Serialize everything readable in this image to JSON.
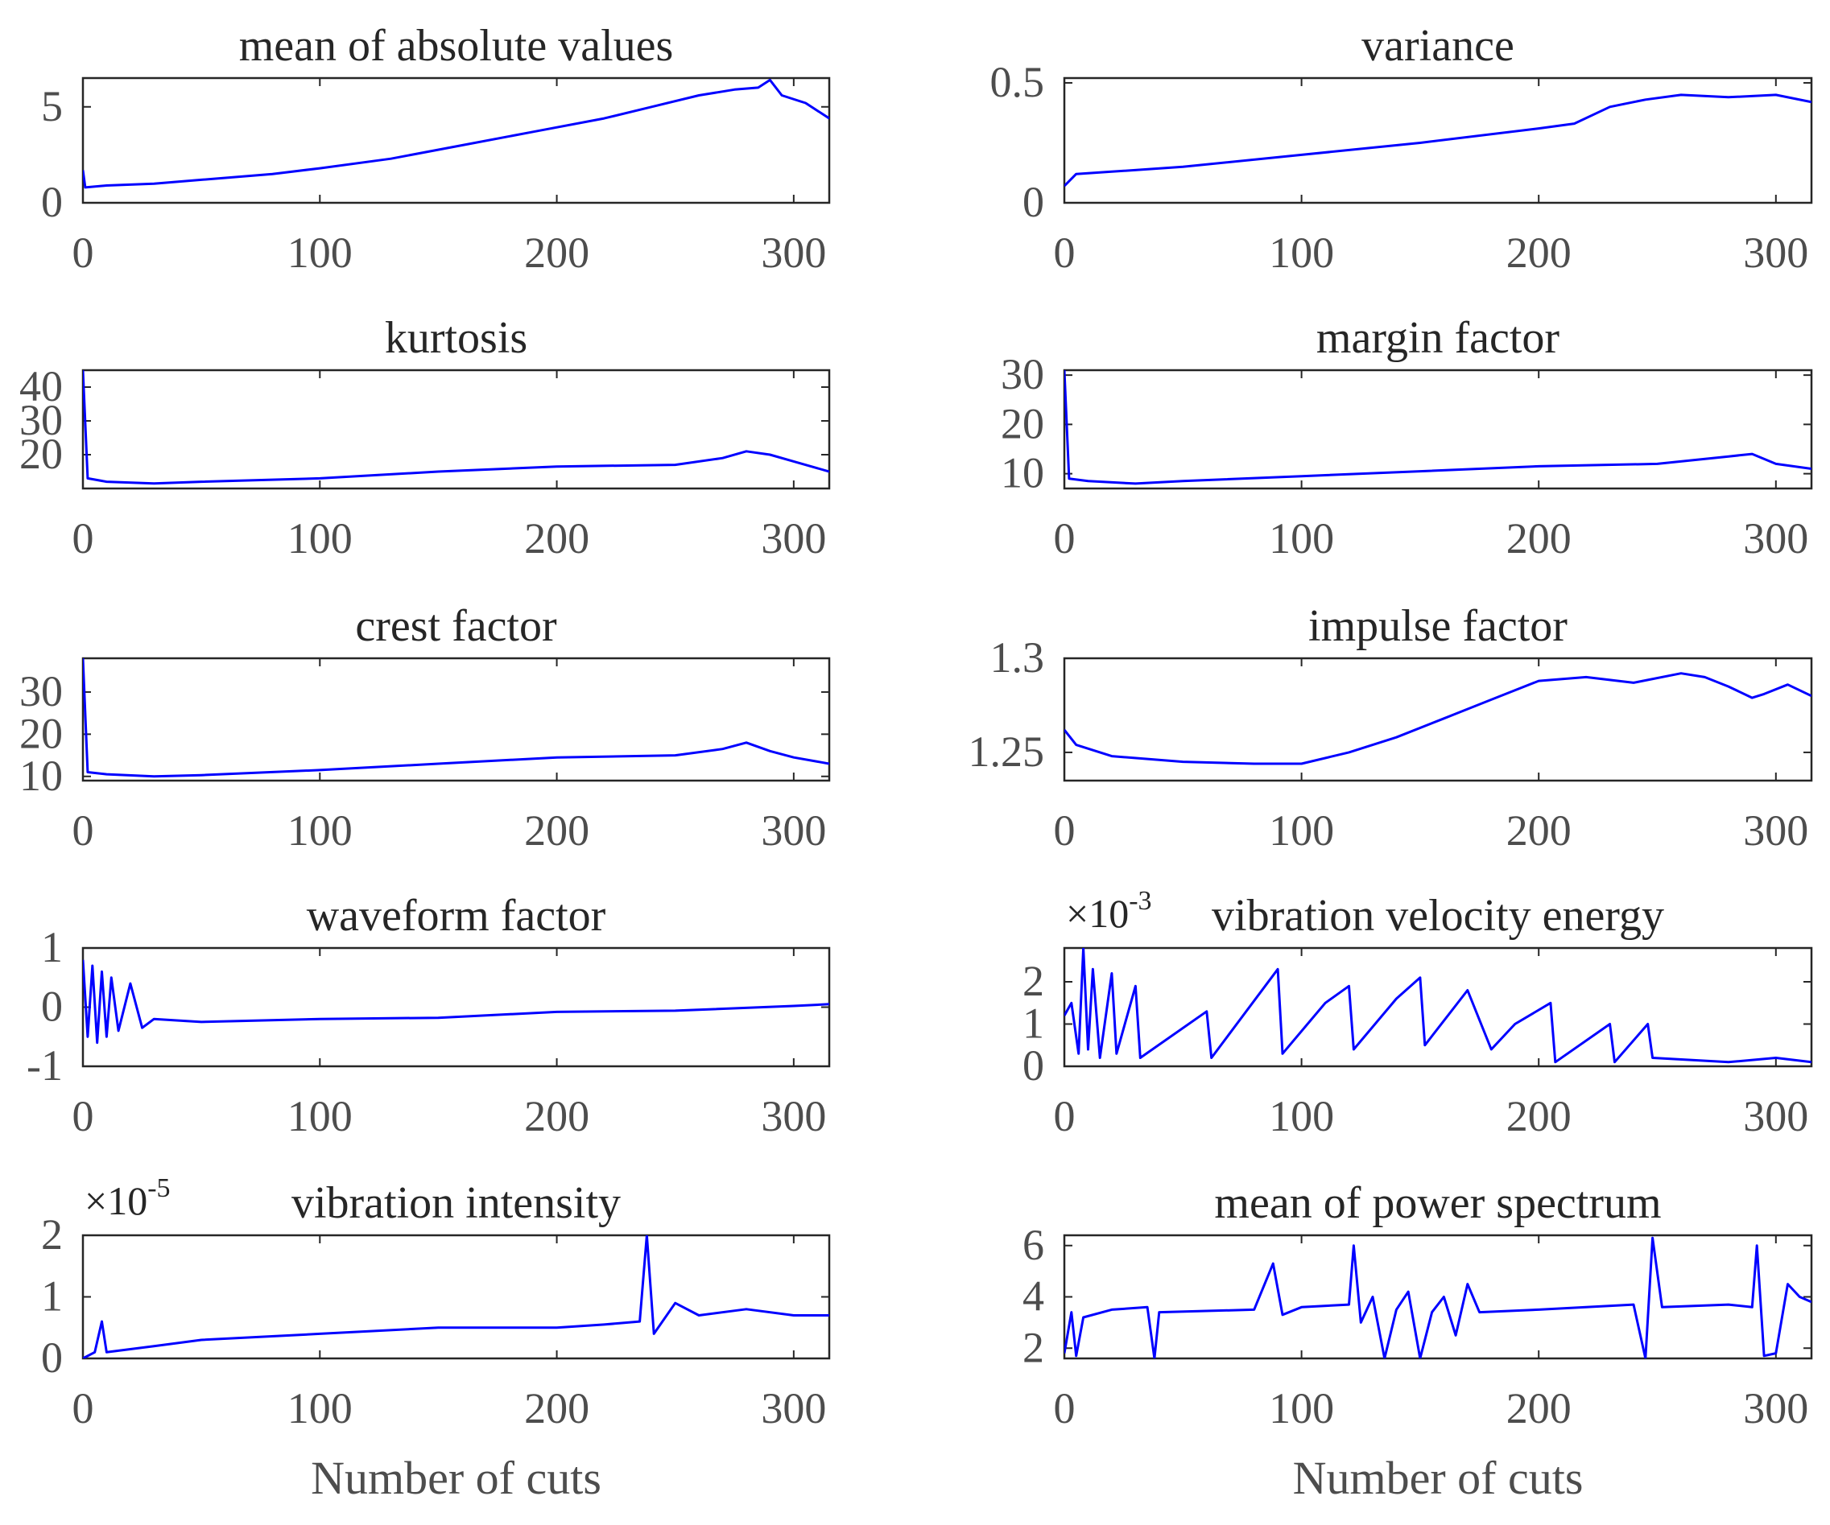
{
  "figure": {
    "xlabel": "Number of cuts",
    "line_color": "#0000ff",
    "axis_color": "#262626",
    "text_color": "#262626",
    "tick_label_color": "#4d4d4d"
  },
  "chart_data": [
    {
      "type": "line",
      "title": "mean of absolute values",
      "exponent_text": "",
      "x": {
        "min": 0,
        "max": 315,
        "ticks": [
          0,
          100,
          200,
          300
        ]
      },
      "y": {
        "min": 0,
        "max": 6.5,
        "ticks": [
          0,
          5
        ],
        "tick_labels": [
          "0",
          "5"
        ]
      },
      "xlabel": "",
      "series": [
        {
          "name": "mean of absolute values",
          "points": [
            [
              0,
              1.7
            ],
            [
              1,
              0.8
            ],
            [
              10,
              0.9
            ],
            [
              30,
              1.0
            ],
            [
              50,
              1.2
            ],
            [
              80,
              1.5
            ],
            [
              100,
              1.8
            ],
            [
              130,
              2.3
            ],
            [
              160,
              3.0
            ],
            [
              190,
              3.7
            ],
            [
              220,
              4.4
            ],
            [
              240,
              5.0
            ],
            [
              260,
              5.6
            ],
            [
              275,
              5.9
            ],
            [
              285,
              6.0
            ],
            [
              290,
              6.4
            ],
            [
              295,
              5.6
            ],
            [
              305,
              5.2
            ],
            [
              315,
              4.4
            ]
          ]
        }
      ]
    },
    {
      "type": "line",
      "title": "variance",
      "exponent_text": "",
      "x": {
        "min": 0,
        "max": 315,
        "ticks": [
          0,
          100,
          200,
          300
        ]
      },
      "y": {
        "min": 0,
        "max": 0.52,
        "ticks": [
          0,
          0.5
        ],
        "tick_labels": [
          "0",
          "0.5"
        ]
      },
      "xlabel": "",
      "series": [
        {
          "name": "variance",
          "points": [
            [
              0,
              0.07
            ],
            [
              5,
              0.12
            ],
            [
              20,
              0.13
            ],
            [
              50,
              0.15
            ],
            [
              100,
              0.2
            ],
            [
              150,
              0.25
            ],
            [
              200,
              0.31
            ],
            [
              215,
              0.33
            ],
            [
              230,
              0.4
            ],
            [
              245,
              0.43
            ],
            [
              260,
              0.45
            ],
            [
              280,
              0.44
            ],
            [
              300,
              0.45
            ],
            [
              315,
              0.42
            ]
          ]
        }
      ]
    },
    {
      "type": "line",
      "title": "kurtosis",
      "exponent_text": "",
      "x": {
        "min": 0,
        "max": 315,
        "ticks": [
          0,
          100,
          200,
          300
        ]
      },
      "y": {
        "min": 10,
        "max": 45,
        "ticks": [
          20,
          30,
          40
        ],
        "tick_labels": [
          "20",
          "30",
          "40"
        ]
      },
      "xlabel": "",
      "series": [
        {
          "name": "kurtosis",
          "points": [
            [
              0,
              45
            ],
            [
              2,
              13
            ],
            [
              10,
              12
            ],
            [
              30,
              11.5
            ],
            [
              50,
              12
            ],
            [
              100,
              13
            ],
            [
              150,
              15
            ],
            [
              200,
              16.5
            ],
            [
              250,
              17
            ],
            [
              270,
              19
            ],
            [
              280,
              21
            ],
            [
              290,
              20
            ],
            [
              300,
              18
            ],
            [
              315,
              15
            ]
          ]
        }
      ]
    },
    {
      "type": "line",
      "title": "margin factor",
      "exponent_text": "",
      "x": {
        "min": 0,
        "max": 315,
        "ticks": [
          0,
          100,
          200,
          300
        ]
      },
      "y": {
        "min": 7,
        "max": 31,
        "ticks": [
          10,
          20,
          30
        ],
        "tick_labels": [
          "10",
          "20",
          "30"
        ]
      },
      "xlabel": "",
      "series": [
        {
          "name": "margin factor",
          "points": [
            [
              0,
              31
            ],
            [
              2,
              9
            ],
            [
              10,
              8.5
            ],
            [
              30,
              8
            ],
            [
              50,
              8.5
            ],
            [
              100,
              9.5
            ],
            [
              150,
              10.5
            ],
            [
              200,
              11.5
            ],
            [
              250,
              12
            ],
            [
              280,
              13.5
            ],
            [
              290,
              14
            ],
            [
              300,
              12
            ],
            [
              315,
              11
            ]
          ]
        }
      ]
    },
    {
      "type": "line",
      "title": "crest factor",
      "exponent_text": "",
      "x": {
        "min": 0,
        "max": 315,
        "ticks": [
          0,
          100,
          200,
          300
        ]
      },
      "y": {
        "min": 9,
        "max": 38,
        "ticks": [
          10,
          20,
          30
        ],
        "tick_labels": [
          "10",
          "20",
          "30"
        ]
      },
      "xlabel": "",
      "series": [
        {
          "name": "crest factor",
          "points": [
            [
              0,
              38
            ],
            [
              2,
              11
            ],
            [
              10,
              10.5
            ],
            [
              30,
              10
            ],
            [
              50,
              10.3
            ],
            [
              100,
              11.5
            ],
            [
              150,
              13
            ],
            [
              200,
              14.5
            ],
            [
              250,
              15
            ],
            [
              270,
              16.5
            ],
            [
              280,
              18
            ],
            [
              290,
              16
            ],
            [
              300,
              14.5
            ],
            [
              315,
              13
            ]
          ]
        }
      ]
    },
    {
      "type": "line",
      "title": "impulse factor",
      "exponent_text": "",
      "x": {
        "min": 0,
        "max": 315,
        "ticks": [
          0,
          100,
          200,
          300
        ]
      },
      "y": {
        "min": 1.235,
        "max": 1.3,
        "ticks": [
          1.25,
          1.3
        ],
        "tick_labels": [
          "1.25",
          "1.3"
        ]
      },
      "xlabel": "",
      "series": [
        {
          "name": "impulse factor",
          "points": [
            [
              0,
              1.262
            ],
            [
              5,
              1.254
            ],
            [
              20,
              1.248
            ],
            [
              50,
              1.245
            ],
            [
              80,
              1.244
            ],
            [
              100,
              1.244
            ],
            [
              120,
              1.25
            ],
            [
              140,
              1.258
            ],
            [
              160,
              1.268
            ],
            [
              180,
              1.278
            ],
            [
              200,
              1.288
            ],
            [
              220,
              1.29
            ],
            [
              240,
              1.287
            ],
            [
              260,
              1.292
            ],
            [
              270,
              1.29
            ],
            [
              280,
              1.285
            ],
            [
              290,
              1.279
            ],
            [
              295,
              1.281
            ],
            [
              305,
              1.286
            ],
            [
              315,
              1.28
            ]
          ]
        }
      ]
    },
    {
      "type": "line",
      "title": "waveform factor",
      "exponent_text": "",
      "x": {
        "min": 0,
        "max": 315,
        "ticks": [
          0,
          100,
          200,
          300
        ]
      },
      "y": {
        "min": -1,
        "max": 1,
        "ticks": [
          -1,
          0,
          1
        ],
        "tick_labels": [
          "-1",
          "0",
          "1"
        ]
      },
      "xlabel": "",
      "series": [
        {
          "name": "waveform factor",
          "points": [
            [
              0,
              0.8
            ],
            [
              2,
              -0.5
            ],
            [
              4,
              0.7
            ],
            [
              6,
              -0.6
            ],
            [
              8,
              0.6
            ],
            [
              10,
              -0.5
            ],
            [
              12,
              0.5
            ],
            [
              15,
              -0.4
            ],
            [
              20,
              0.4
            ],
            [
              25,
              -0.35
            ],
            [
              30,
              -0.2
            ],
            [
              50,
              -0.25
            ],
            [
              100,
              -0.2
            ],
            [
              150,
              -0.18
            ],
            [
              200,
              -0.08
            ],
            [
              250,
              -0.06
            ],
            [
              300,
              0.02
            ],
            [
              315,
              0.05
            ]
          ]
        }
      ]
    },
    {
      "type": "line",
      "title": "vibration velocity energy",
      "exponent_text": "×10-3",
      "x": {
        "min": 0,
        "max": 315,
        "ticks": [
          0,
          100,
          200,
          300
        ]
      },
      "y": {
        "min": 0,
        "max": 2.8,
        "ticks": [
          0,
          1,
          2
        ],
        "tick_labels": [
          "0",
          "1",
          "2"
        ]
      },
      "xlabel": "",
      "series": [
        {
          "name": "vibration velocity energy",
          "points": [
            [
              0,
              1.2
            ],
            [
              3,
              1.5
            ],
            [
              6,
              0.3
            ],
            [
              8,
              2.8
            ],
            [
              10,
              0.4
            ],
            [
              12,
              2.3
            ],
            [
              15,
              0.2
            ],
            [
              20,
              2.2
            ],
            [
              22,
              0.3
            ],
            [
              30,
              1.9
            ],
            [
              32,
              0.2
            ],
            [
              60,
              1.3
            ],
            [
              62,
              0.2
            ],
            [
              90,
              2.3
            ],
            [
              92,
              0.3
            ],
            [
              110,
              1.5
            ],
            [
              120,
              1.9
            ],
            [
              122,
              0.4
            ],
            [
              140,
              1.6
            ],
            [
              150,
              2.1
            ],
            [
              152,
              0.5
            ],
            [
              170,
              1.8
            ],
            [
              180,
              0.4
            ],
            [
              190,
              1.0
            ],
            [
              205,
              1.5
            ],
            [
              207,
              0.1
            ],
            [
              230,
              1.0
            ],
            [
              232,
              0.1
            ],
            [
              246,
              1.0
            ],
            [
              248,
              0.2
            ],
            [
              280,
              0.1
            ],
            [
              300,
              0.2
            ],
            [
              315,
              0.1
            ]
          ]
        }
      ]
    },
    {
      "type": "line",
      "title": "vibration intensity",
      "exponent_text": "×10-5",
      "x": {
        "min": 0,
        "max": 315,
        "ticks": [
          0,
          100,
          200,
          300
        ]
      },
      "y": {
        "min": 0,
        "max": 2,
        "ticks": [
          0,
          1,
          2
        ],
        "tick_labels": [
          "0",
          "1",
          "2"
        ]
      },
      "xlabel": "Number of cuts",
      "series": [
        {
          "name": "vibration intensity",
          "points": [
            [
              0,
              0
            ],
            [
              5,
              0.1
            ],
            [
              8,
              0.6
            ],
            [
              10,
              0.1
            ],
            [
              20,
              0.15
            ],
            [
              30,
              0.2
            ],
            [
              50,
              0.3
            ],
            [
              100,
              0.4
            ],
            [
              150,
              0.5
            ],
            [
              200,
              0.5
            ],
            [
              220,
              0.55
            ],
            [
              235,
              0.6
            ],
            [
              238,
              2.0
            ],
            [
              241,
              0.4
            ],
            [
              250,
              0.9
            ],
            [
              260,
              0.7
            ],
            [
              280,
              0.8
            ],
            [
              300,
              0.7
            ],
            [
              315,
              0.7
            ]
          ]
        }
      ]
    },
    {
      "type": "line",
      "title": "mean of power spectrum",
      "exponent_text": "",
      "x": {
        "min": 0,
        "max": 315,
        "ticks": [
          0,
          100,
          200,
          300
        ]
      },
      "y": {
        "min": 1.6,
        "max": 6.4,
        "ticks": [
          2,
          4,
          6
        ],
        "tick_labels": [
          "2",
          "4",
          "6"
        ]
      },
      "xlabel": "Number of cuts",
      "series": [
        {
          "name": "mean of power spectrum",
          "points": [
            [
              0,
              1.8
            ],
            [
              3,
              3.4
            ],
            [
              5,
              1.7
            ],
            [
              8,
              3.2
            ],
            [
              20,
              3.5
            ],
            [
              35,
              3.6
            ],
            [
              38,
              1.6
            ],
            [
              40,
              3.4
            ],
            [
              80,
              3.5
            ],
            [
              88,
              5.3
            ],
            [
              92,
              3.3
            ],
            [
              100,
              3.6
            ],
            [
              120,
              3.7
            ],
            [
              122,
              6.0
            ],
            [
              125,
              3.0
            ],
            [
              130,
              4.0
            ],
            [
              135,
              1.6
            ],
            [
              140,
              3.5
            ],
            [
              145,
              4.2
            ],
            [
              150,
              1.6
            ],
            [
              155,
              3.4
            ],
            [
              160,
              4.0
            ],
            [
              165,
              2.5
            ],
            [
              170,
              4.5
            ],
            [
              175,
              3.4
            ],
            [
              200,
              3.5
            ],
            [
              240,
              3.7
            ],
            [
              245,
              1.6
            ],
            [
              248,
              6.3
            ],
            [
              252,
              3.6
            ],
            [
              280,
              3.7
            ],
            [
              290,
              3.6
            ],
            [
              292,
              6.0
            ],
            [
              295,
              1.7
            ],
            [
              300,
              1.8
            ],
            [
              305,
              4.5
            ],
            [
              310,
              4.0
            ],
            [
              315,
              3.8
            ]
          ]
        }
      ]
    }
  ]
}
